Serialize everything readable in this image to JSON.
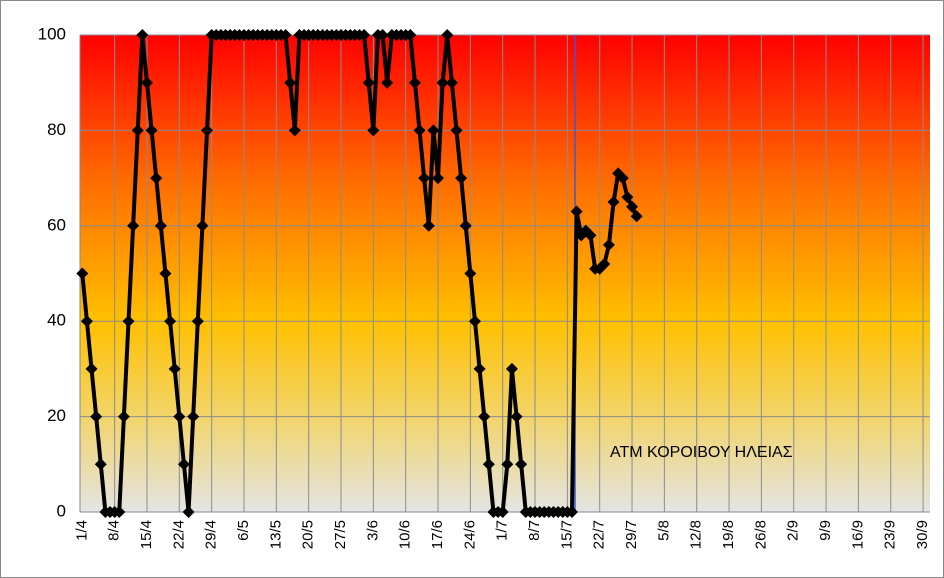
{
  "chart_data": {
    "type": "line",
    "annotation": "ATM ΚΟΡΟΙΒΟΥ ΗΛΕΙΑΣ",
    "categories": [
      "1/4",
      null,
      null,
      null,
      null,
      null,
      null,
      "8/4",
      null,
      null,
      null,
      null,
      null,
      null,
      "15/4",
      null,
      null,
      null,
      null,
      null,
      null,
      "22/4",
      null,
      null,
      null,
      null,
      null,
      null,
      "29/4",
      null,
      null,
      null,
      null,
      null,
      null,
      "6/5",
      null,
      null,
      null,
      null,
      null,
      null,
      "13/5",
      null,
      null,
      null,
      null,
      null,
      null,
      "20/5",
      null,
      null,
      null,
      null,
      null,
      null,
      "27/5",
      null,
      null,
      null,
      null,
      null,
      null,
      "3/6",
      null,
      null,
      null,
      null,
      null,
      null,
      "10/6",
      null,
      null,
      null,
      null,
      null,
      null,
      "17/6",
      null,
      null,
      null,
      null,
      null,
      null,
      "24/6",
      null,
      null,
      null,
      null,
      null,
      null,
      "1/7",
      null,
      null,
      null,
      null,
      null,
      null,
      "8/7",
      null,
      null,
      null,
      null,
      null,
      null,
      "15/7",
      null,
      null,
      null,
      null,
      null,
      null,
      "22/7",
      null,
      null,
      null,
      null,
      null,
      null,
      "29/7",
      null,
      null,
      null,
      null,
      null,
      null,
      "5/8",
      null,
      null,
      null,
      null,
      null,
      null,
      "12/8",
      null,
      null,
      null,
      null,
      null,
      null,
      "19/8",
      null,
      null,
      null,
      null,
      null,
      null,
      "26/8",
      null,
      null,
      null,
      null,
      null,
      null,
      "2/9",
      null,
      null,
      null,
      null,
      null,
      null,
      "9/9",
      null,
      null,
      null,
      null,
      null,
      null,
      "16/9",
      null,
      null,
      null,
      null,
      null,
      null,
      "23/9",
      null,
      null,
      null,
      null,
      null,
      null,
      "30/9",
      null
    ],
    "series": [
      {
        "name": "ATM ΚΟΡΟΙΒΟΥ ΗΛΕΙΑΣ",
        "color": "#000000",
        "values": [
          50,
          40,
          30,
          20,
          10,
          0,
          0,
          0,
          0,
          20,
          40,
          60,
          80,
          100,
          90,
          80,
          70,
          60,
          50,
          40,
          30,
          20,
          10,
          0,
          20,
          40,
          60,
          80,
          100,
          100,
          100,
          100,
          100,
          100,
          100,
          100,
          100,
          100,
          100,
          100,
          100,
          100,
          100,
          100,
          100,
          90,
          80,
          100,
          100,
          100,
          100,
          100,
          100,
          100,
          100,
          100,
          100,
          100,
          100,
          100,
          100,
          100,
          90,
          80,
          100,
          100,
          90,
          100,
          100,
          100,
          100,
          100,
          90,
          80,
          70,
          60,
          80,
          70,
          90,
          100,
          90,
          80,
          70,
          60,
          50,
          40,
          30,
          20,
          10,
          0,
          0,
          0,
          10,
          30,
          20,
          10,
          0,
          0,
          0,
          0,
          0,
          0,
          0,
          0,
          0,
          0,
          0,
          63,
          58,
          59,
          58,
          51,
          51,
          52,
          56,
          65,
          71,
          70,
          66,
          64,
          62,
          null,
          null,
          null,
          null,
          null,
          null,
          null,
          null,
          null,
          null,
          null,
          null,
          null,
          null,
          null,
          null,
          null,
          null,
          null,
          null,
          null,
          null,
          null,
          null,
          null,
          null,
          null,
          null,
          null,
          null,
          null,
          null,
          null,
          null,
          null,
          null,
          null,
          null,
          null,
          null,
          null,
          null,
          null,
          null,
          null,
          null,
          null,
          null,
          null,
          null,
          null,
          null,
          null,
          null,
          null,
          null,
          null,
          null,
          null,
          null,
          null,
          null,
          null
        ]
      }
    ],
    "ylim": [
      0,
      100
    ],
    "yticks": [
      0,
      20,
      40,
      60,
      80,
      100
    ],
    "grid": true
  }
}
